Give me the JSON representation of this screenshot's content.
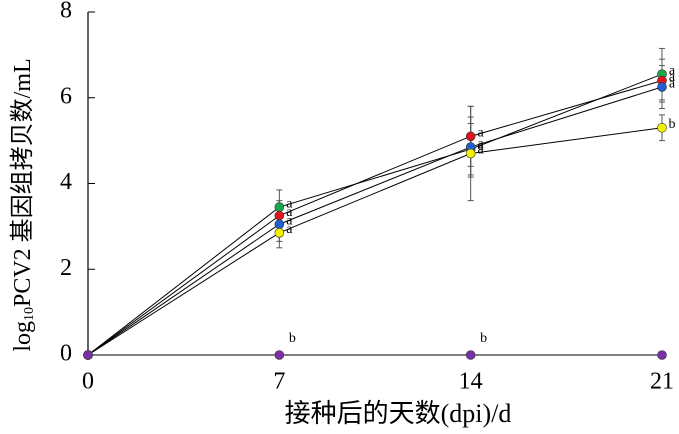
{
  "chart_data": {
    "type": "line",
    "xlabel": "接种后的天数(dpi)/d",
    "ylabel_parts": [
      "log",
      "10",
      "PCV2 基因组拷贝数/mL"
    ],
    "x": [
      0,
      7,
      14,
      21
    ],
    "xlim": [
      0,
      21
    ],
    "xticks": [
      0,
      7,
      14,
      21
    ],
    "ylim": [
      0,
      8
    ],
    "yticks": [
      0,
      2,
      4,
      6,
      8
    ],
    "series": [
      {
        "color": "#1aa84a",
        "values": [
          0,
          3.45,
          4.8,
          6.55
        ],
        "errors": [
          0,
          0.4,
          0.6,
          0.6
        ],
        "letters": [
          null,
          "a",
          "a",
          "a"
        ]
      },
      {
        "color": "#e0141e",
        "values": [
          0,
          3.25,
          5.1,
          6.4
        ],
        "errors": [
          0,
          0.35,
          0.7,
          0.5
        ],
        "letters": [
          null,
          "a",
          "a",
          "a"
        ]
      },
      {
        "color": "#1f5fd0",
        "values": [
          0,
          3.05,
          4.85,
          6.25
        ],
        "errors": [
          0,
          0.4,
          0.7,
          0.5
        ],
        "letters": [
          null,
          "a",
          "a",
          "a"
        ]
      },
      {
        "color": "#f5f000",
        "values": [
          0,
          2.85,
          4.7,
          5.3
        ],
        "errors": [
          0,
          0.35,
          1.1,
          0.3
        ],
        "letters": [
          null,
          "a",
          "a",
          "b"
        ]
      },
      {
        "color": "#7a2fa8",
        "values": [
          0,
          0,
          0,
          0
        ],
        "errors": [
          0,
          0,
          0,
          0
        ],
        "letters": [
          null,
          "b",
          "b",
          null
        ]
      }
    ]
  }
}
